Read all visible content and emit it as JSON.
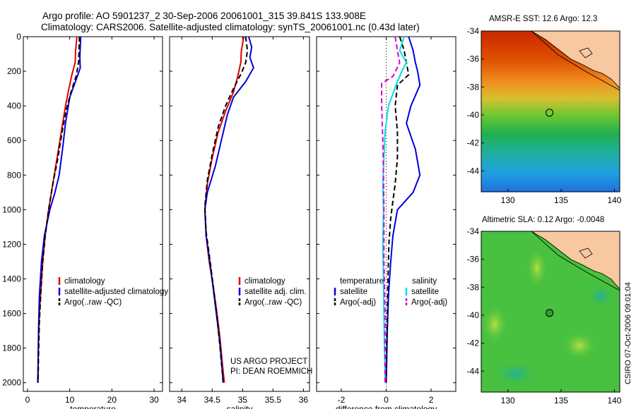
{
  "figure": {
    "title_line1": "Argo profile: AO 5901237_2 30-Sep-2006 20061001_315 39.841S 133.908E",
    "title_line2": "Climatology: CARS2006. Satellite-adjusted climatology: synTS_20061001.nc (0.43d later)",
    "credit_line1": "US ARGO PROJECT",
    "credit_line2": "PI: DEAN ROEMMICH",
    "stamp": "CSIRO 07-Oct-2006 09:01:04"
  },
  "colors": {
    "climatology": "#e00000",
    "satellite": "#0000dd",
    "argo": "#000000",
    "satellite_salinity": "#00e0e0",
    "argo_salinity": "#dd00dd",
    "land": "#f8c8a0"
  },
  "legends": {
    "temperature": [
      "climatology",
      "satellite-adjusted climatology",
      "Argo(..raw -QC)"
    ],
    "salinity": [
      "climatology",
      "satellite adj. clim.",
      "Argo(..raw -QC)"
    ],
    "difference": {
      "header_left": "temperature",
      "header_right": "salinity",
      "left": [
        "satellite",
        "Argo(-adj)"
      ],
      "right": [
        "satellite",
        "Argo(-adj)"
      ]
    }
  },
  "maps": [
    {
      "title": "AMSR-E SST: 12.6 Argo: 12.3",
      "xticks": [
        "130",
        "135",
        "140"
      ],
      "yticks": [
        "-34",
        "-36",
        "-38",
        "-40",
        "-42",
        "-44"
      ],
      "xlim": [
        127.5,
        140.5
      ],
      "ylim": [
        -45.5,
        -34
      ],
      "marker": {
        "lon": 133.908,
        "lat": -39.841
      }
    },
    {
      "title": "Altimetric SLA: 0.12 Argo: -0.0048",
      "xticks": [
        "130",
        "135",
        "140"
      ],
      "yticks": [
        "-34",
        "-36",
        "-38",
        "-40",
        "-42",
        "-44"
      ],
      "xlim": [
        127.5,
        140.5
      ],
      "ylim": [
        -45.5,
        -34
      ],
      "marker": {
        "lon": 133.908,
        "lat": -39.841
      }
    }
  ],
  "chart_data": [
    {
      "type": "line",
      "xlabel": "temperature",
      "xlim": [
        -1,
        32
      ],
      "ylim": [
        2050,
        0
      ],
      "xticks": [
        0,
        10,
        20,
        30
      ],
      "yticks": [
        0,
        200,
        400,
        600,
        800,
        1000,
        1200,
        1400,
        1600,
        1800,
        2000
      ],
      "series": [
        {
          "name": "climatology",
          "style": "solid",
          "x": [
            11.7,
            11.4,
            11.3,
            10.5,
            9.8,
            9.0,
            8.0,
            7.0,
            6.0,
            5.0,
            4.2,
            3.6,
            3.2,
            2.8,
            2.6,
            2.5,
            2.5
          ],
          "y": [
            0,
            80,
            150,
            220,
            300,
            400,
            550,
            700,
            850,
            1000,
            1150,
            1300,
            1450,
            1600,
            1750,
            1900,
            2000
          ]
        },
        {
          "name": "satellite-adjusted climatology",
          "style": "solid",
          "x": [
            12.6,
            12.5,
            12.4,
            12.5,
            11.5,
            10.0,
            9.0,
            8.3,
            7.5,
            6.5,
            5.3,
            4.0,
            3.3,
            2.8,
            2.6,
            2.5,
            2.4
          ],
          "y": [
            0,
            60,
            120,
            180,
            250,
            350,
            500,
            650,
            800,
            900,
            1000,
            1150,
            1300,
            1500,
            1700,
            1900,
            2000
          ]
        },
        {
          "name": "Argo(..raw -QC)",
          "style": "dash",
          "x": [
            12.3,
            12.2,
            12.1,
            11.5,
            10.3,
            9.2,
            8.2,
            7.2,
            6.0,
            5.0,
            4.2,
            3.6,
            3.2,
            2.8,
            2.6,
            2.5
          ],
          "y": [
            0,
            80,
            150,
            230,
            320,
            420,
            550,
            700,
            850,
            1000,
            1150,
            1300,
            1450,
            1650,
            1850,
            2000
          ]
        }
      ]
    },
    {
      "type": "line",
      "xlabel": "salinity",
      "xlim": [
        33.8,
        36.1
      ],
      "ylim": [
        2050,
        0
      ],
      "xticks": [
        34,
        34.5,
        35,
        35.5,
        36
      ],
      "yticks": [
        0,
        200,
        400,
        600,
        800,
        1000,
        1200,
        1400,
        1600,
        1800,
        2000
      ],
      "series": [
        {
          "name": "climatology",
          "style": "solid",
          "x": [
            35.02,
            34.98,
            34.97,
            34.92,
            34.85,
            34.72,
            34.6,
            34.5,
            34.42,
            34.38,
            34.4,
            34.45,
            34.52,
            34.58,
            34.63,
            34.67,
            34.7
          ],
          "y": [
            0,
            80,
            150,
            230,
            320,
            430,
            550,
            700,
            850,
            1000,
            1150,
            1300,
            1450,
            1600,
            1750,
            1900,
            2000
          ]
        },
        {
          "name": "satellite adj. clim.",
          "style": "solid",
          "x": [
            35.1,
            35.15,
            35.12,
            35.18,
            35.05,
            34.85,
            34.75,
            34.65,
            34.55,
            34.42,
            34.38,
            34.4,
            34.48,
            34.55,
            34.62,
            34.66,
            34.68
          ],
          "y": [
            0,
            60,
            120,
            180,
            260,
            350,
            450,
            600,
            750,
            900,
            1000,
            1150,
            1350,
            1550,
            1750,
            1900,
            2000
          ]
        },
        {
          "name": "Argo(..raw -QC)",
          "style": "dash",
          "x": [
            35.05,
            35.08,
            35.05,
            34.98,
            34.85,
            34.72,
            34.6,
            34.5,
            34.42,
            34.38,
            34.4,
            34.46,
            34.52,
            34.58,
            34.63,
            34.68
          ],
          "y": [
            0,
            80,
            150,
            210,
            300,
            400,
            520,
            680,
            830,
            980,
            1130,
            1280,
            1450,
            1620,
            1800,
            2000
          ]
        }
      ]
    },
    {
      "type": "line",
      "xlabel": "difference from climatology",
      "xlim": [
        -3.1,
        3.1
      ],
      "ylim": [
        2050,
        0
      ],
      "xticks": [
        -2,
        0,
        2
      ],
      "yticks": [
        0,
        200,
        400,
        600,
        800,
        1000,
        1200,
        1400,
        1600,
        1800,
        2000
      ],
      "series": [
        {
          "name": "temperature satellite",
          "style": "solid",
          "color_key": "satellite",
          "x": [
            1.0,
            1.2,
            1.3,
            1.4,
            1.5,
            1.1,
            0.9,
            1.3,
            1.5,
            1.2,
            0.5,
            0.3,
            0.2,
            0.1,
            0.05,
            0.02,
            0.0
          ],
          "y": [
            0,
            80,
            150,
            200,
            280,
            400,
            500,
            650,
            800,
            900,
            1000,
            1150,
            1300,
            1500,
            1700,
            1900,
            2000
          ]
        },
        {
          "name": "temperature Argo(-adj)",
          "style": "dash",
          "color_key": "argo",
          "x": [
            0.6,
            0.8,
            0.9,
            1.0,
            0.5,
            0.4,
            0.5,
            0.5,
            0.4,
            0.3,
            0.2,
            0.12,
            0.08,
            0.05,
            0.02,
            0.0
          ],
          "y": [
            0,
            80,
            150,
            220,
            280,
            400,
            550,
            700,
            850,
            950,
            1050,
            1200,
            1400,
            1600,
            1800,
            2000
          ]
        },
        {
          "name": "salinity satellite",
          "style": "solid",
          "color_key": "satellite_salinity",
          "x": [
            0.8,
            0.6,
            0.9,
            0.7,
            0.5,
            0.1,
            -0.05,
            -0.1,
            -0.15,
            -0.12,
            -0.15,
            -0.12,
            -0.1,
            -0.08,
            -0.05,
            -0.05
          ],
          "y": [
            0,
            80,
            150,
            200,
            260,
            400,
            550,
            700,
            850,
            1000,
            1200,
            1400,
            1600,
            1800,
            1950,
            2000
          ]
        },
        {
          "name": "salinity Argo(-adj)",
          "style": "dash",
          "color_key": "argo_salinity",
          "x": [
            0.4,
            0.5,
            0.6,
            0.3,
            -0.2,
            -0.2,
            -0.15,
            -0.12,
            -0.1,
            -0.1,
            -0.05,
            -0.05
          ],
          "y": [
            0,
            80,
            150,
            230,
            270,
            400,
            600,
            800,
            1000,
            1300,
            1600,
            2000
          ]
        }
      ]
    }
  ]
}
